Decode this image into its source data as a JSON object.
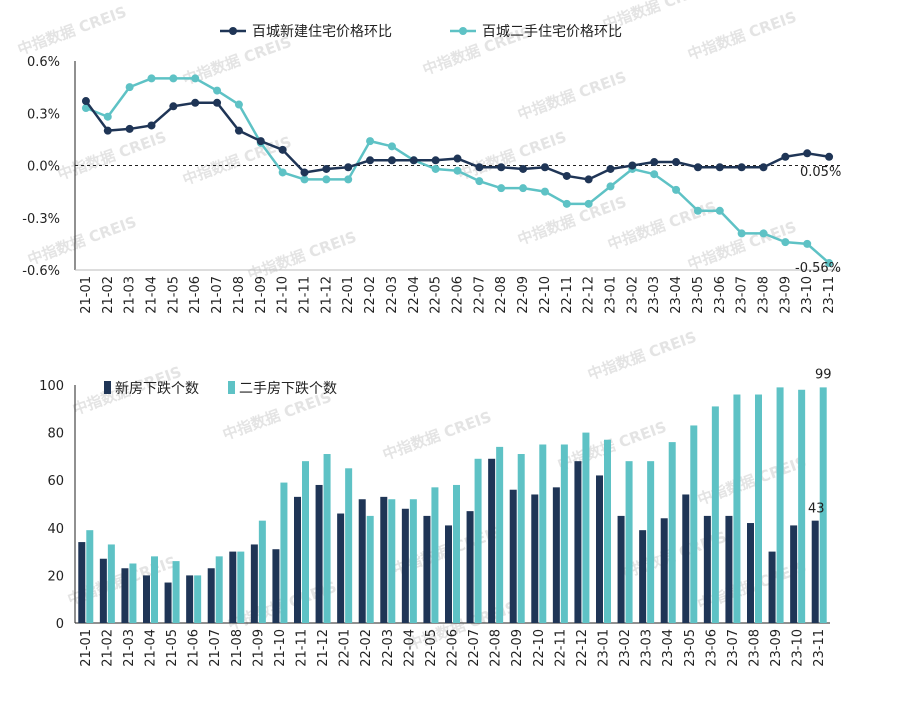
{
  "watermark_text": "中指数据 CREIS",
  "chart_data": [
    {
      "type": "line",
      "months": [
        "21-01",
        "21-02",
        "21-03",
        "21-04",
        "21-05",
        "21-06",
        "21-07",
        "21-08",
        "21-09",
        "21-10",
        "21-11",
        "21-12",
        "22-01",
        "22-02",
        "22-03",
        "22-04",
        "22-05",
        "22-06",
        "22-07",
        "22-08",
        "22-09",
        "22-10",
        "22-11",
        "22-12",
        "23-01",
        "23-02",
        "23-03",
        "23-04",
        "23-05",
        "23-06",
        "23-07",
        "23-08",
        "23-09",
        "23-10",
        "23-11"
      ],
      "y_ticks": [
        "0.6%",
        "0.3%",
        "0.0%",
        "-0.3%",
        "-0.6%"
      ],
      "ylim": [
        -0.6,
        0.6
      ],
      "zero_line": "dashed",
      "series": [
        {
          "name": "百城新建住宅价格环比",
          "color": "#1f3556",
          "values": [
            0.37,
            0.2,
            0.21,
            0.23,
            0.34,
            0.36,
            0.36,
            0.2,
            0.14,
            0.09,
            -0.04,
            -0.02,
            -0.01,
            0.03,
            0.03,
            0.03,
            0.03,
            0.04,
            -0.01,
            -0.01,
            -0.02,
            -0.01,
            -0.06,
            -0.08,
            -0.02,
            0.0,
            0.02,
            0.02,
            -0.01,
            -0.01,
            -0.01,
            -0.01,
            0.05,
            0.07,
            0.05
          ],
          "end_label": "0.05%"
        },
        {
          "name": "百城二手住宅价格环比",
          "color": "#5ec2c5",
          "values": [
            0.33,
            0.28,
            0.45,
            0.5,
            0.5,
            0.5,
            0.43,
            0.35,
            0.13,
            -0.04,
            -0.08,
            -0.08,
            -0.08,
            0.14,
            0.11,
            0.03,
            -0.02,
            -0.03,
            -0.09,
            -0.13,
            -0.13,
            -0.15,
            -0.22,
            -0.22,
            -0.12,
            -0.02,
            -0.05,
            -0.14,
            -0.26,
            -0.26,
            -0.39,
            -0.39,
            -0.44,
            -0.45,
            -0.56
          ],
          "end_label": "-0.56%"
        }
      ]
    },
    {
      "type": "bar",
      "months": [
        "21-01",
        "21-02",
        "21-03",
        "21-04",
        "21-05",
        "21-06",
        "21-07",
        "21-08",
        "21-09",
        "21-10",
        "21-11",
        "21-12",
        "22-01",
        "22-02",
        "22-03",
        "22-04",
        "22-05",
        "22-06",
        "22-07",
        "22-08",
        "22-09",
        "22-10",
        "22-11",
        "22-12",
        "23-01",
        "23-02",
        "23-03",
        "23-04",
        "23-05",
        "23-06",
        "23-07",
        "23-08",
        "23-09",
        "23-10",
        "23-11"
      ],
      "y_ticks": [
        "100",
        "80",
        "60",
        "40",
        "20",
        "0"
      ],
      "ylim": [
        0,
        100
      ],
      "series": [
        {
          "name": "新房下跌个数",
          "color": "#1f3556",
          "values": [
            34,
            27,
            23,
            20,
            17,
            20,
            23,
            30,
            33,
            31,
            53,
            58,
            46,
            52,
            53,
            48,
            45,
            41,
            47,
            69,
            56,
            54,
            57,
            68,
            62,
            45,
            39,
            44,
            54,
            45,
            45,
            42,
            30,
            41,
            43
          ],
          "end_label": "43"
        },
        {
          "name": "二手房下跌个数",
          "color": "#5ec2c5",
          "values": [
            39,
            33,
            25,
            28,
            26,
            20,
            28,
            30,
            43,
            59,
            68,
            71,
            65,
            45,
            52,
            52,
            57,
            58,
            69,
            74,
            71,
            75,
            75,
            80,
            77,
            68,
            68,
            76,
            83,
            91,
            96,
            96,
            99,
            98,
            99
          ],
          "end_label": "99"
        }
      ]
    }
  ]
}
